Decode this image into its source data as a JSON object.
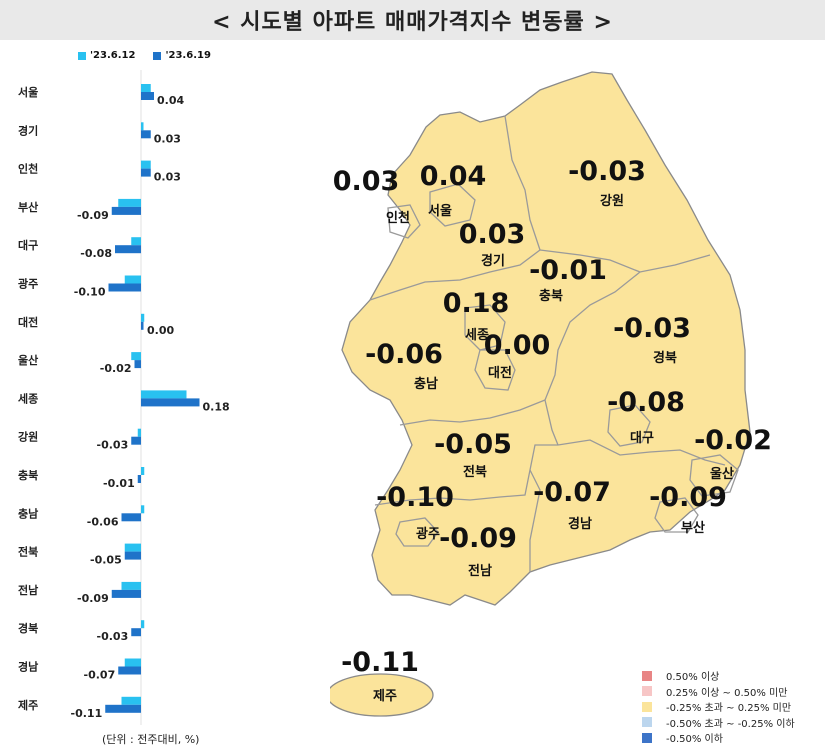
{
  "title": "< 시도별 아파트 매매가격지수 변동률 >",
  "legend_series": [
    {
      "label": "'23.6.12",
      "color": "#29c1f0"
    },
    {
      "label": "'23.6.19",
      "color": "#1f73c9"
    }
  ],
  "unit_note": "(단위 : 전주대비, %)",
  "chart_data": {
    "type": "bar",
    "orientation": "horizontal",
    "categories": [
      "서울",
      "경기",
      "인천",
      "부산",
      "대구",
      "광주",
      "대전",
      "울산",
      "세종",
      "강원",
      "충북",
      "충남",
      "전북",
      "전남",
      "경북",
      "경남",
      "제주"
    ],
    "series": [
      {
        "name": "'23.6.12",
        "values": [
          0.03,
          0.0,
          0.03,
          -0.07,
          -0.03,
          -0.05,
          0.01,
          -0.03,
          0.14,
          -0.01,
          0.01,
          0.01,
          -0.05,
          -0.06,
          0.01,
          -0.05,
          -0.06
        ]
      },
      {
        "name": "'23.6.19",
        "values": [
          0.04,
          0.03,
          0.03,
          -0.09,
          -0.08,
          -0.1,
          0.0,
          -0.02,
          0.18,
          -0.03,
          -0.01,
          -0.06,
          -0.05,
          -0.09,
          -0.03,
          -0.07,
          -0.11
        ]
      }
    ],
    "value_labels": [
      "0.04",
      "0.03",
      "0.03",
      "-0.09",
      "-0.08",
      "-0.10",
      "0.00",
      "-0.02",
      "0.18",
      "-0.03",
      "-0.01",
      "-0.06",
      "-0.05",
      "-0.09",
      "-0.03",
      "-0.07",
      "-0.11"
    ]
  },
  "map_labels": [
    {
      "region": "인천",
      "value": "0.03"
    },
    {
      "region": "서울",
      "value": "0.04"
    },
    {
      "region": "강원",
      "value": "-0.03"
    },
    {
      "region": "경기",
      "value": "0.03"
    },
    {
      "region": "충북",
      "value": "-0.01"
    },
    {
      "region": "세종",
      "value": "0.18"
    },
    {
      "region": "대전",
      "value": "0.00"
    },
    {
      "region": "경북",
      "value": "-0.03"
    },
    {
      "region": "충남",
      "value": "-0.06"
    },
    {
      "region": "대구",
      "value": "-0.08"
    },
    {
      "region": "울산",
      "value": "-0.02"
    },
    {
      "region": "전북",
      "value": "-0.05"
    },
    {
      "region": "광주",
      "value": "-0.10"
    },
    {
      "region": "경남",
      "value": "-0.07"
    },
    {
      "region": "부산",
      "value": "-0.09"
    },
    {
      "region": "전남",
      "value": "-0.09"
    },
    {
      "region": "제주",
      "value": "-0.11"
    }
  ],
  "map_fill": "#fbe49b",
  "range_legend": [
    {
      "label": "0.50% 이상",
      "color": "#e88585"
    },
    {
      "label": "0.25% 이상 ~ 0.50% 미만",
      "color": "#f7c6c6"
    },
    {
      "label": "-0.25% 초과 ~ 0.25% 미만",
      "color": "#fbe49b"
    },
    {
      "label": "-0.50% 초과 ~ -0.25% 이하",
      "color": "#bcd6ee"
    },
    {
      "label": "-0.50% 이하",
      "color": "#3d74c8"
    }
  ]
}
